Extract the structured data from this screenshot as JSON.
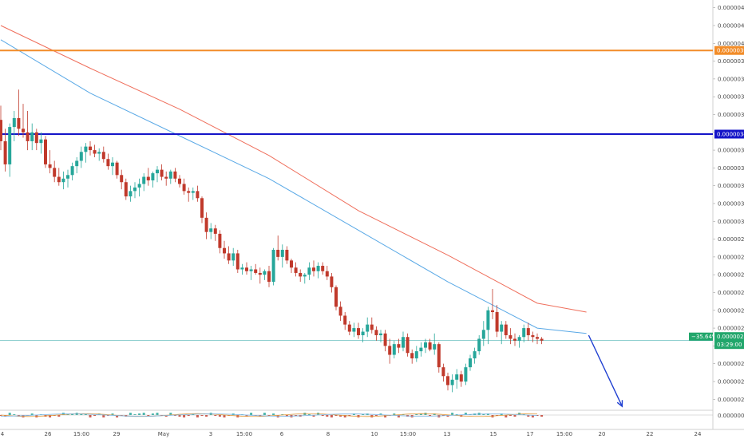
{
  "colors": {
    "up": "#26a69a",
    "down": "#c0392b",
    "ma_fast": "#5aa9e6",
    "ma_slow": "#ef6f5c",
    "orange_line": "#f28c28",
    "blue_line": "#1414c8",
    "price_line": "#4fb3b3",
    "arrow": "#1f3fd1",
    "price_tag": "#21a66b"
  },
  "price_axis": {
    "ticks": [
      "0.00000420",
      "0.00000410",
      "0.00000400",
      "0.00000390",
      "0.00000380",
      "0.00000370",
      "0.00000360",
      "0.00000350",
      "0.00000340",
      "0.00000330",
      "0.00000320",
      "0.00000310",
      "0.00000300",
      "0.00000290",
      "0.00000280",
      "0.00000270",
      "0.00000260",
      "0.00000250",
      "0.00000240",
      "0.00000230",
      "0.00000220",
      "0.00000210",
      "0.00000200"
    ],
    "indicator_tick": "0.00000000"
  },
  "time_axis": {
    "labels": [
      "4",
      "26",
      "15:00",
      "29",
      "May",
      "3",
      "15:00",
      "6",
      "8",
      "10",
      "15:00",
      "13",
      "15",
      "17",
      "15:00",
      "20",
      "22",
      "24"
    ]
  },
  "levels": {
    "orange": {
      "value": 3.96e-06,
      "label": "0.00000396"
    },
    "blue": {
      "value": 3.49e-06,
      "label": "0.00000349"
    },
    "current": {
      "value": 2.33e-06,
      "label": "0.00000233",
      "change": "−35.64%",
      "countdown": "03:29:00"
    }
  },
  "chart_data": {
    "type": "candlestick",
    "y_range": [
      1.925e-06,
      4.23e-06
    ],
    "x_index_range": [
      0,
      144
    ],
    "candles": [
      [
        3.57e-06,
        3.65e-06,
        3.4e-06,
        3.45e-06
      ],
      [
        3.45e-06,
        3.52e-06,
        3.28e-06,
        3.32e-06
      ],
      [
        3.32e-06,
        3.55e-06,
        3.25e-06,
        3.53e-06
      ],
      [
        3.53e-06,
        3.62e-06,
        3.45e-06,
        3.58e-06
      ],
      [
        3.58e-06,
        3.74e-06,
        3.48e-06,
        3.52e-06
      ],
      [
        3.52e-06,
        3.66e-06,
        3.47e-06,
        3.5e-06
      ],
      [
        3.5e-06,
        3.62e-06,
        3.4e-06,
        3.45e-06
      ],
      [
        3.45e-06,
        3.55e-06,
        3.4e-06,
        3.5e-06
      ],
      [
        3.5e-06,
        3.52e-06,
        3.4e-06,
        3.44e-06
      ],
      [
        3.44e-06,
        3.5e-06,
        3.38e-06,
        3.46e-06
      ],
      [
        3.46e-06,
        3.48e-06,
        3.3e-06,
        3.32e-06
      ],
      [
        3.32e-06,
        3.4e-06,
        3.27e-06,
        3.3e-06
      ],
      [
        3.3e-06,
        3.34e-06,
        3.22e-06,
        3.25e-06
      ],
      [
        3.25e-06,
        3.3e-06,
        3.2e-06,
        3.22e-06
      ],
      [
        3.22e-06,
        3.28e-06,
        3.18e-06,
        3.24e-06
      ],
      [
        3.24e-06,
        3.29e-06,
        3.19e-06,
        3.26e-06
      ],
      [
        3.26e-06,
        3.33e-06,
        3.23e-06,
        3.31e-06
      ],
      [
        3.31e-06,
        3.36e-06,
        3.27e-06,
        3.34e-06
      ],
      [
        3.34e-06,
        3.42e-06,
        3.3e-06,
        3.39e-06
      ],
      [
        3.39e-06,
        3.44e-06,
        3.33e-06,
        3.42e-06
      ],
      [
        3.42e-06,
        3.45e-06,
        3.37e-06,
        3.4e-06
      ],
      [
        3.4e-06,
        3.43e-06,
        3.36e-06,
        3.38e-06
      ],
      [
        3.38e-06,
        3.41e-06,
        3.34e-06,
        3.39e-06
      ],
      [
        3.39e-06,
        3.42e-06,
        3.33e-06,
        3.35e-06
      ],
      [
        3.35e-06,
        3.38e-06,
        3.29e-06,
        3.31e-06
      ],
      [
        3.31e-06,
        3.36e-06,
        3.26e-06,
        3.33e-06
      ],
      [
        3.33e-06,
        3.34e-06,
        3.24e-06,
        3.26e-06
      ],
      [
        3.26e-06,
        3.29e-06,
        3.18e-06,
        3.22e-06
      ],
      [
        3.22e-06,
        3.24e-06,
        3.12e-06,
        3.14e-06
      ],
      [
        3.14e-06,
        3.2e-06,
        3.11e-06,
        3.17e-06
      ],
      [
        3.17e-06,
        3.22e-06,
        3.13e-06,
        3.19e-06
      ],
      [
        3.19e-06,
        3.24e-06,
        3.14e-06,
        3.21e-06
      ],
      [
        3.21e-06,
        3.27e-06,
        3.17e-06,
        3.25e-06
      ],
      [
        3.25e-06,
        3.3e-06,
        3.2e-06,
        3.23e-06
      ],
      [
        3.23e-06,
        3.28e-06,
        3.19e-06,
        3.27e-06
      ],
      [
        3.27e-06,
        3.31e-06,
        3.22e-06,
        3.29e-06
      ],
      [
        3.29e-06,
        3.32e-06,
        3.23e-06,
        3.25e-06
      ],
      [
        3.25e-06,
        3.28e-06,
        3.2e-06,
        3.24e-06
      ],
      [
        3.24e-06,
        3.29e-06,
        3.21e-06,
        3.28e-06
      ],
      [
        3.28e-06,
        3.3e-06,
        3.22e-06,
        3.24e-06
      ],
      [
        3.24e-06,
        3.26e-06,
        3.19e-06,
        3.21e-06
      ],
      [
        3.21e-06,
        3.24e-06,
        3.15e-06,
        3.17e-06
      ],
      [
        3.17e-06,
        3.19e-06,
        3.11e-06,
        3.16e-06
      ],
      [
        3.16e-06,
        3.19e-06,
        3.12e-06,
        3.17e-06
      ],
      [
        3.17e-06,
        3.2e-06,
        3.11e-06,
        3.13e-06
      ],
      [
        3.13e-06,
        3.14e-06,
        2.99e-06,
        3.02e-06
      ],
      [
        3.02e-06,
        3.05e-06,
        2.9e-06,
        2.94e-06
      ],
      [
        2.94e-06,
        2.99e-06,
        2.9e-06,
        2.96e-06
      ],
      [
        2.96e-06,
        2.98e-06,
        2.89e-06,
        2.93e-06
      ],
      [
        2.93e-06,
        2.95e-06,
        2.82e-06,
        2.85e-06
      ],
      [
        2.85e-06,
        2.89e-06,
        2.79e-06,
        2.82e-06
      ],
      [
        2.82e-06,
        2.86e-06,
        2.76e-06,
        2.78e-06
      ],
      [
        2.78e-06,
        2.85e-06,
        2.75e-06,
        2.82e-06
      ],
      [
        2.82e-06,
        2.84e-06,
        2.71e-06,
        2.73e-06
      ],
      [
        2.73e-06,
        2.76e-06,
        2.7e-06,
        2.74e-06
      ],
      [
        2.74e-06,
        2.77e-06,
        2.7e-06,
        2.72e-06
      ],
      [
        2.72e-06,
        2.75e-06,
        2.67e-06,
        2.73e-06
      ],
      [
        2.73e-06,
        2.76e-06,
        2.7e-06,
        2.71e-06
      ],
      [
        2.71e-06,
        2.74e-06,
        2.65e-06,
        2.7e-06
      ],
      [
        2.7e-06,
        2.73e-06,
        2.67e-06,
        2.72e-06
      ],
      [
        2.72e-06,
        2.75e-06,
        2.63e-06,
        2.66e-06
      ],
      [
        2.66e-06,
        2.85e-06,
        2.64e-06,
        2.84e-06
      ],
      [
        2.84e-06,
        2.92e-06,
        2.78e-06,
        2.8e-06
      ],
      [
        2.8e-06,
        2.87e-06,
        2.74e-06,
        2.84e-06
      ],
      [
        2.84e-06,
        2.86e-06,
        2.76e-06,
        2.78e-06
      ],
      [
        2.78e-06,
        2.79e-06,
        2.71e-06,
        2.74e-06
      ],
      [
        2.74e-06,
        2.77e-06,
        2.69e-06,
        2.71e-06
      ],
      [
        2.71e-06,
        2.73e-06,
        2.66e-06,
        2.69e-06
      ],
      [
        2.69e-06,
        2.71e-06,
        2.65e-06,
        2.7e-06
      ],
      [
        2.7e-06,
        2.77e-06,
        2.67e-06,
        2.74e-06
      ],
      [
        2.74e-06,
        2.78e-06,
        2.69e-06,
        2.72e-06
      ],
      [
        2.72e-06,
        2.77e-06,
        2.68e-06,
        2.75e-06
      ],
      [
        2.75e-06,
        2.77e-06,
        2.7e-06,
        2.72e-06
      ],
      [
        2.72e-06,
        2.75e-06,
        2.67e-06,
        2.69e-06
      ],
      [
        2.69e-06,
        2.71e-06,
        2.6e-06,
        2.63e-06
      ],
      [
        2.63e-06,
        2.64e-06,
        2.5e-06,
        2.52e-06
      ],
      [
        2.52e-06,
        2.55e-06,
        2.44e-06,
        2.47e-06
      ],
      [
        2.47e-06,
        2.49e-06,
        2.39e-06,
        2.42e-06
      ],
      [
        2.42e-06,
        2.44e-06,
        2.36e-06,
        2.38e-06
      ],
      [
        2.38e-06,
        2.43e-06,
        2.35e-06,
        2.4e-06
      ],
      [
        2.4e-06,
        2.43e-06,
        2.34e-06,
        2.36e-06
      ],
      [
        2.36e-06,
        2.4e-06,
        2.32e-06,
        2.38e-06
      ],
      [
        2.38e-06,
        2.46e-06,
        2.35e-06,
        2.42e-06
      ],
      [
        2.42e-06,
        2.46e-06,
        2.37e-06,
        2.39e-06
      ],
      [
        2.39e-06,
        2.41e-06,
        2.33e-06,
        2.36e-06
      ],
      [
        2.36e-06,
        2.39e-06,
        2.32e-06,
        2.37e-06
      ],
      [
        2.37e-06,
        2.39e-06,
        2.27e-06,
        2.3e-06
      ],
      [
        2.3e-06,
        2.34e-06,
        2.2e-06,
        2.25e-06
      ],
      [
        2.25e-06,
        2.33e-06,
        2.23e-06,
        2.31e-06
      ],
      [
        2.31e-06,
        2.34e-06,
        2.26e-06,
        2.29e-06
      ],
      [
        2.29e-06,
        2.38e-06,
        2.27e-06,
        2.35e-06
      ],
      [
        2.35e-06,
        2.37e-06,
        2.24e-06,
        2.26e-06
      ],
      [
        2.26e-06,
        2.28e-06,
        2.2e-06,
        2.23e-06
      ],
      [
        2.23e-06,
        2.3e-06,
        2.21e-06,
        2.27e-06
      ],
      [
        2.27e-06,
        2.32e-06,
        2.24e-06,
        2.29e-06
      ],
      [
        2.29e-06,
        2.34e-06,
        2.26e-06,
        2.32e-06
      ],
      [
        2.32e-06,
        2.34e-06,
        2.27e-06,
        2.28e-06
      ],
      [
        2.28e-06,
        2.37e-06,
        2.25e-06,
        2.31e-06
      ],
      [
        2.31e-06,
        2.32e-06,
        2.15e-06,
        2.18e-06
      ],
      [
        2.18e-06,
        2.2e-06,
        2.1e-06,
        2.13e-06
      ],
      [
        2.13e-06,
        2.15e-06,
        2.05e-06,
        2.08e-06
      ],
      [
        2.08e-06,
        2.14e-06,
        2.04e-06,
        2.11e-06
      ],
      [
        2.11e-06,
        2.17e-06,
        2.06e-06,
        2.14e-06
      ],
      [
        2.14e-06,
        2.16e-06,
        2.07e-06,
        2.1e-06
      ],
      [
        2.1e-06,
        2.2e-06,
        2.08e-06,
        2.18e-06
      ],
      [
        2.18e-06,
        2.25e-06,
        2.16e-06,
        2.23e-06
      ],
      [
        2.23e-06,
        2.29e-06,
        2.2e-06,
        2.27e-06
      ],
      [
        2.27e-06,
        2.36e-06,
        2.25e-06,
        2.34e-06
      ],
      [
        2.34e-06,
        2.44e-06,
        2.3e-06,
        2.39e-06
      ],
      [
        2.39e-06,
        2.52e-06,
        2.31e-06,
        2.5e-06
      ],
      [
        2.5e-06,
        2.62e-06,
        2.45e-06,
        2.49e-06
      ],
      [
        2.49e-06,
        2.53e-06,
        2.35e-06,
        2.38e-06
      ],
      [
        2.38e-06,
        2.44e-06,
        2.31e-06,
        2.42e-06
      ],
      [
        2.42e-06,
        2.44e-06,
        2.34e-06,
        2.36e-06
      ],
      [
        2.36e-06,
        2.4e-06,
        2.31e-06,
        2.34e-06
      ],
      [
        2.34e-06,
        2.37e-06,
        2.3e-06,
        2.33e-06
      ],
      [
        2.33e-06,
        2.36e-06,
        2.29e-06,
        2.35e-06
      ],
      [
        2.35e-06,
        2.42e-06,
        2.32e-06,
        2.4e-06
      ],
      [
        2.4e-06,
        2.43e-06,
        2.33e-06,
        2.36e-06
      ],
      [
        2.36e-06,
        2.38e-06,
        2.32e-06,
        2.35e-06
      ],
      [
        2.35e-06,
        2.37e-06,
        2.31e-06,
        2.34e-06
      ],
      [
        2.34e-06,
        2.35e-06,
        2.31e-06,
        2.33e-06
      ]
    ],
    "candle_x_start": 1,
    "candle_x_step": 5.6,
    "ma_fast": {
      "x": [
        0,
        20,
        40,
        60,
        80,
        100,
        120,
        131
      ],
      "y": [
        4.02e-06,
        3.72e-06,
        3.48e-06,
        3.24e-06,
        2.95e-06,
        2.66e-06,
        2.4e-06,
        2.37e-06
      ]
    },
    "ma_slow": {
      "x": [
        0,
        20,
        40,
        60,
        80,
        100,
        120,
        131
      ],
      "y": [
        4.1e-06,
        3.86e-06,
        3.63e-06,
        3.37e-06,
        3.06e-06,
        2.81e-06,
        2.54e-06,
        2.49e-06
      ]
    },
    "projection_arrow": {
      "x": [
        131.5,
        139
      ],
      "y": [
        2.36e-06,
        1.96e-06
      ]
    },
    "indicator": {
      "value_label": "0.00000000"
    }
  }
}
